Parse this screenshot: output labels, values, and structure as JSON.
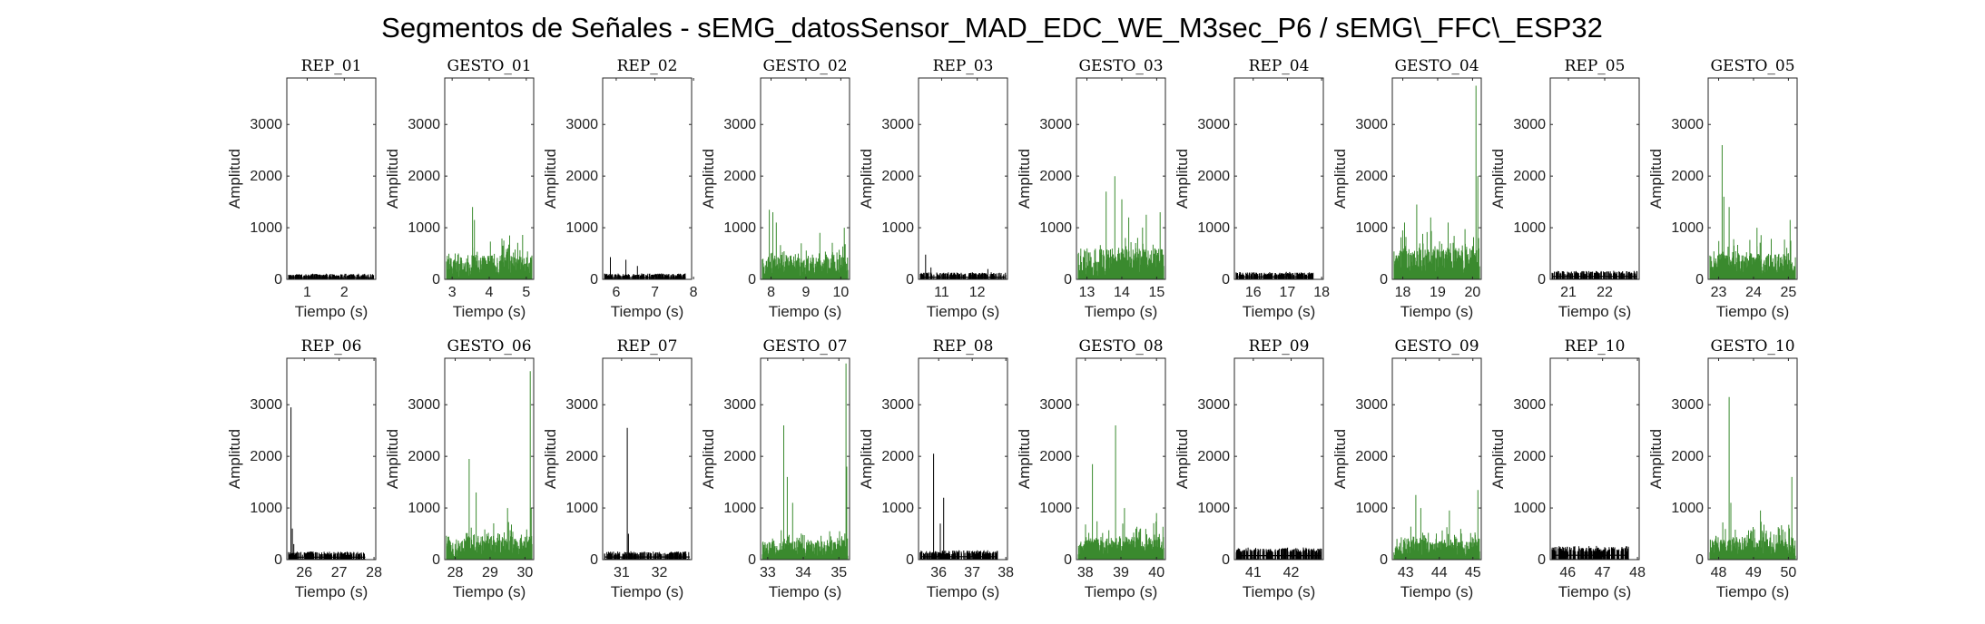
{
  "title": "Segmentos de Señales - sEMG_datosSensor_MAD_EDC_WE_M3sec_P6 / sEMG\\_FFC\\_ESP32",
  "colors": {
    "rep": "#000000",
    "gesto": "#3a8a2e",
    "axis": "#262626"
  },
  "chart_data": [
    {
      "type": "area",
      "title": "REP_01",
      "xlabel": "Tiempo (s)",
      "ylabel": "Amplitud",
      "xlim": [
        0.45,
        2.85
      ],
      "ylim": [
        0,
        3900
      ],
      "xticks": [
        1,
        2
      ],
      "yticks": [
        0,
        1000,
        2000,
        3000
      ],
      "color": "rep",
      "x_range": [
        0.5,
        2.8
      ],
      "base": 55,
      "noise": 40,
      "level": 20,
      "spikes": []
    },
    {
      "type": "area",
      "title": "GESTO_01",
      "xlabel": "Tiempo (s)",
      "ylabel": "Amplitud",
      "xlim": [
        2.8,
        5.2
      ],
      "ylim": [
        0,
        3900
      ],
      "xticks": [
        3,
        4,
        5
      ],
      "yticks": [
        0,
        1000,
        2000,
        3000
      ],
      "color": "gesto",
      "x_range": [
        2.85,
        5.15
      ],
      "base": 60,
      "noise": 40,
      "level": 420,
      "active_from": 3.5,
      "spikes": [
        [
          3.55,
          1400
        ],
        [
          3.6,
          1150
        ],
        [
          4.55,
          850
        ],
        [
          4.9,
          860
        ]
      ]
    },
    {
      "type": "area",
      "title": "REP_02",
      "xlabel": "Tiempo (s)",
      "ylabel": "Amplitud",
      "xlim": [
        5.65,
        7.95
      ],
      "ylim": [
        0,
        3900
      ],
      "xticks": [
        6,
        7,
        8
      ],
      "yticks": [
        0,
        1000,
        2000,
        3000
      ],
      "color": "rep",
      "x_range": [
        5.7,
        7.8
      ],
      "base": 60,
      "noise": 40,
      "level": 20,
      "spikes": [
        [
          5.85,
          430
        ],
        [
          6.25,
          380
        ],
        [
          6.55,
          260
        ]
      ]
    },
    {
      "type": "area",
      "title": "GESTO_02",
      "xlabel": "Tiempo (s)",
      "ylabel": "Amplitud",
      "xlim": [
        7.7,
        10.25
      ],
      "ylim": [
        0,
        3900
      ],
      "xticks": [
        8,
        9,
        10
      ],
      "yticks": [
        0,
        1000,
        2000,
        3000
      ],
      "color": "gesto",
      "x_range": [
        7.75,
        10.2
      ],
      "base": 60,
      "noise": 40,
      "level": 420,
      "active_from": 7.9,
      "spikes": [
        [
          7.95,
          1350
        ],
        [
          8.05,
          1300
        ],
        [
          8.15,
          1100
        ],
        [
          9.4,
          900
        ],
        [
          10.1,
          1000
        ]
      ]
    },
    {
      "type": "area",
      "title": "REP_03",
      "xlabel": "Tiempo (s)",
      "ylabel": "Amplitud",
      "xlim": [
        10.35,
        12.85
      ],
      "ylim": [
        0,
        3900
      ],
      "xticks": [
        11,
        12
      ],
      "yticks": [
        0,
        1000,
        2000,
        3000
      ],
      "color": "rep",
      "x_range": [
        10.4,
        12.8
      ],
      "base": 70,
      "noise": 50,
      "level": 20,
      "spikes": [
        [
          10.55,
          480
        ],
        [
          10.7,
          230
        ],
        [
          12.3,
          200
        ]
      ]
    },
    {
      "type": "area",
      "title": "GESTO_03",
      "xlabel": "Tiempo (s)",
      "ylabel": "Amplitud",
      "xlim": [
        12.7,
        15.25
      ],
      "ylim": [
        0,
        3900
      ],
      "xticks": [
        13,
        14,
        15
      ],
      "yticks": [
        0,
        1000,
        2000,
        3000
      ],
      "color": "gesto",
      "x_range": [
        12.75,
        15.2
      ],
      "base": 60,
      "noise": 40,
      "level": 550,
      "active_from": 13.35,
      "spikes": [
        [
          13.55,
          1700
        ],
        [
          13.8,
          2000
        ],
        [
          14.0,
          1550
        ],
        [
          14.2,
          1200
        ],
        [
          14.7,
          1250
        ],
        [
          15.1,
          1300
        ]
      ]
    },
    {
      "type": "area",
      "title": "REP_04",
      "xlabel": "Tiempo (s)",
      "ylabel": "Amplitud",
      "xlim": [
        15.45,
        18.05
      ],
      "ylim": [
        0,
        3900
      ],
      "xticks": [
        16,
        17,
        18
      ],
      "yticks": [
        0,
        1000,
        2000,
        3000
      ],
      "color": "rep",
      "x_range": [
        15.5,
        17.75
      ],
      "base": 75,
      "noise": 50,
      "level": 20,
      "spikes": []
    },
    {
      "type": "area",
      "title": "GESTO_04",
      "xlabel": "Tiempo (s)",
      "ylabel": "Amplitud",
      "xlim": [
        17.7,
        20.25
      ],
      "ylim": [
        0,
        3900
      ],
      "xticks": [
        18,
        19,
        20
      ],
      "yticks": [
        0,
        1000,
        2000,
        3000
      ],
      "color": "gesto",
      "x_range": [
        17.75,
        20.2
      ],
      "base": 60,
      "noise": 40,
      "level": 550,
      "active_from": 17.85,
      "spikes": [
        [
          18.05,
          1100
        ],
        [
          18.4,
          1450
        ],
        [
          18.8,
          1200
        ],
        [
          19.3,
          1100
        ],
        [
          20.1,
          3750
        ],
        [
          20.15,
          2000
        ]
      ]
    },
    {
      "type": "area",
      "title": "REP_05",
      "xlabel": "Tiempo (s)",
      "ylabel": "Amplitud",
      "xlim": [
        20.5,
        22.95
      ],
      "ylim": [
        0,
        3900
      ],
      "xticks": [
        21,
        22
      ],
      "yticks": [
        0,
        1000,
        2000,
        3000
      ],
      "color": "rep",
      "x_range": [
        20.55,
        22.9
      ],
      "base": 90,
      "noise": 60,
      "level": 20,
      "spikes": []
    },
    {
      "type": "area",
      "title": "GESTO_05",
      "xlabel": "Tiempo (s)",
      "ylabel": "Amplitud",
      "xlim": [
        22.7,
        25.25
      ],
      "ylim": [
        0,
        3900
      ],
      "xticks": [
        23,
        24,
        25
      ],
      "yticks": [
        0,
        1000,
        2000,
        3000
      ],
      "color": "gesto",
      "x_range": [
        22.75,
        25.2
      ],
      "base": 60,
      "noise": 40,
      "level": 450,
      "active_from": 22.95,
      "spikes": [
        [
          23.1,
          2600
        ],
        [
          23.15,
          1600
        ],
        [
          23.3,
          1400
        ],
        [
          24.1,
          1000
        ],
        [
          25.05,
          1150
        ]
      ]
    },
    {
      "type": "area",
      "title": "REP_06",
      "xlabel": "Tiempo (s)",
      "ylabel": "Amplitud",
      "xlim": [
        25.5,
        28.05
      ],
      "ylim": [
        0,
        3900
      ],
      "xticks": [
        26,
        27,
        28
      ],
      "yticks": [
        0,
        1000,
        2000,
        3000
      ],
      "color": "rep",
      "x_range": [
        25.55,
        27.75
      ],
      "base": 80,
      "noise": 60,
      "level": 20,
      "spikes": [
        [
          25.62,
          2950
        ],
        [
          25.66,
          600
        ],
        [
          25.7,
          300
        ]
      ]
    },
    {
      "type": "area",
      "title": "GESTO_06",
      "xlabel": "Tiempo (s)",
      "ylabel": "Amplitud",
      "xlim": [
        27.7,
        30.25
      ],
      "ylim": [
        0,
        3900
      ],
      "xticks": [
        28,
        29,
        30
      ],
      "yticks": [
        0,
        1000,
        2000,
        3000
      ],
      "color": "gesto",
      "x_range": [
        27.75,
        30.2
      ],
      "base": 60,
      "noise": 40,
      "level": 400,
      "active_from": 28.3,
      "spikes": [
        [
          28.4,
          1950
        ],
        [
          28.6,
          1300
        ],
        [
          29.5,
          1000
        ],
        [
          30.15,
          3650
        ],
        [
          30.18,
          1000
        ]
      ]
    },
    {
      "type": "area",
      "title": "REP_07",
      "xlabel": "Tiempo (s)",
      "ylabel": "Amplitud",
      "xlim": [
        30.5,
        32.85
      ],
      "ylim": [
        0,
        3900
      ],
      "xticks": [
        31,
        32
      ],
      "yticks": [
        0,
        1000,
        2000,
        3000
      ],
      "color": "rep",
      "x_range": [
        30.55,
        32.8
      ],
      "base": 85,
      "noise": 60,
      "level": 20,
      "spikes": [
        [
          31.15,
          2550
        ],
        [
          31.18,
          500
        ]
      ]
    },
    {
      "type": "area",
      "title": "GESTO_07",
      "xlabel": "Tiempo (s)",
      "ylabel": "Amplitud",
      "xlim": [
        32.8,
        35.3
      ],
      "ylim": [
        0,
        3900
      ],
      "xticks": [
        33,
        34,
        35
      ],
      "yticks": [
        0,
        1000,
        2000,
        3000
      ],
      "color": "gesto",
      "x_range": [
        32.85,
        35.25
      ],
      "base": 60,
      "noise": 40,
      "level": 320,
      "active_from": 33.35,
      "spikes": [
        [
          33.45,
          2600
        ],
        [
          33.55,
          1600
        ],
        [
          33.7,
          1100
        ],
        [
          35.2,
          3800
        ],
        [
          35.22,
          1800
        ]
      ]
    },
    {
      "type": "area",
      "title": "REP_08",
      "xlabel": "Tiempo (s)",
      "ylabel": "Amplitud",
      "xlim": [
        35.4,
        38.05
      ],
      "ylim": [
        0,
        3900
      ],
      "xticks": [
        36,
        37,
        38
      ],
      "yticks": [
        0,
        1000,
        2000,
        3000
      ],
      "color": "rep",
      "x_range": [
        35.45,
        37.75
      ],
      "base": 95,
      "noise": 70,
      "level": 20,
      "spikes": [
        [
          35.85,
          2050
        ],
        [
          36.15,
          1200
        ],
        [
          36.05,
          700
        ]
      ]
    },
    {
      "type": "area",
      "title": "GESTO_08",
      "xlabel": "Tiempo (s)",
      "ylabel": "Amplitud",
      "xlim": [
        37.75,
        40.25
      ],
      "ylim": [
        0,
        3900
      ],
      "xticks": [
        38,
        39,
        40
      ],
      "yticks": [
        0,
        1000,
        2000,
        3000
      ],
      "color": "gesto",
      "x_range": [
        37.8,
        40.2
      ],
      "base": 60,
      "noise": 40,
      "level": 380,
      "active_from": 37.95,
      "spikes": [
        [
          38.2,
          1850
        ],
        [
          38.85,
          2600
        ],
        [
          39.1,
          1000
        ],
        [
          40.0,
          900
        ]
      ]
    },
    {
      "type": "area",
      "title": "REP_09",
      "xlabel": "Tiempo (s)",
      "ylabel": "Amplitud",
      "xlim": [
        40.5,
        42.85
      ],
      "ylim": [
        0,
        3900
      ],
      "xticks": [
        41,
        42
      ],
      "yticks": [
        0,
        1000,
        2000,
        3000
      ],
      "color": "rep",
      "x_range": [
        40.55,
        42.8
      ],
      "base": 130,
      "noise": 90,
      "level": 20,
      "spikes": []
    },
    {
      "type": "area",
      "title": "GESTO_09",
      "xlabel": "Tiempo (s)",
      "ylabel": "Amplitud",
      "xlim": [
        42.6,
        45.25
      ],
      "ylim": [
        0,
        3900
      ],
      "xticks": [
        43,
        44,
        45
      ],
      "yticks": [
        0,
        1000,
        2000,
        3000
      ],
      "color": "gesto",
      "x_range": [
        42.65,
        45.2
      ],
      "base": 60,
      "noise": 40,
      "level": 350,
      "active_from": 43.15,
      "spikes": [
        [
          43.3,
          1250
        ],
        [
          43.45,
          1000
        ],
        [
          44.3,
          950
        ],
        [
          45.15,
          1350
        ]
      ]
    },
    {
      "type": "area",
      "title": "REP_10",
      "xlabel": "Tiempo (s)",
      "ylabel": "Amplitud",
      "xlim": [
        45.5,
        48.05
      ],
      "ylim": [
        0,
        3900
      ],
      "xticks": [
        46,
        47,
        48
      ],
      "yticks": [
        0,
        1000,
        2000,
        3000
      ],
      "color": "rep",
      "x_range": [
        45.55,
        47.75
      ],
      "base": 140,
      "noise": 110,
      "level": 20,
      "spikes": []
    },
    {
      "type": "area",
      "title": "GESTO_10",
      "xlabel": "Tiempo (s)",
      "ylabel": "Amplitud",
      "xlim": [
        47.7,
        50.25
      ],
      "ylim": [
        0,
        3900
      ],
      "xticks": [
        48,
        49,
        50
      ],
      "yticks": [
        0,
        1000,
        2000,
        3000
      ],
      "color": "gesto",
      "x_range": [
        47.75,
        50.2
      ],
      "base": 60,
      "noise": 40,
      "level": 380,
      "active_from": 48.05,
      "spikes": [
        [
          48.3,
          3150
        ],
        [
          48.35,
          1100
        ],
        [
          49.2,
          950
        ],
        [
          50.1,
          1600
        ]
      ]
    }
  ]
}
